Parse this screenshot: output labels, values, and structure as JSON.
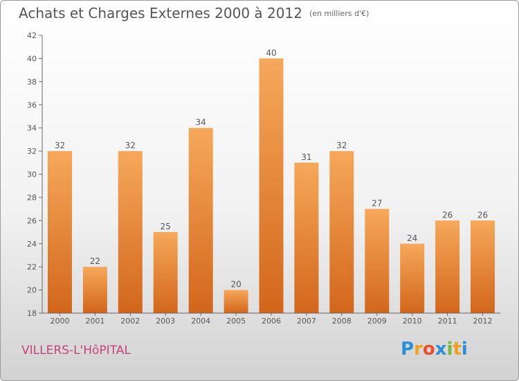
{
  "header": {
    "title": "Achats et Charges Externes 2000 à 2012",
    "unit": "(en milliers d'€)"
  },
  "footer": {
    "town": "VILLERS-L'HôPITAL",
    "logo": {
      "letters": [
        "P",
        "r",
        "o",
        "x",
        "i",
        "t",
        "i"
      ],
      "colors": [
        "#2b8fd6",
        "#f0a020",
        "#e84f2a",
        "#2b8fd6",
        "#7ab83a",
        "#f0a020",
        "#2b8fd6"
      ]
    }
  },
  "chart_data": {
    "type": "bar",
    "categories": [
      "2000",
      "2001",
      "2002",
      "2003",
      "2004",
      "2005",
      "2006",
      "2007",
      "2008",
      "2009",
      "2010",
      "2011",
      "2012"
    ],
    "values": [
      32,
      22,
      32,
      25,
      34,
      20,
      40,
      31,
      32,
      27,
      24,
      26,
      26
    ],
    "data_labels": [
      "32",
      "22",
      "32",
      "25",
      "34",
      "20",
      "40",
      "31",
      "32",
      "27",
      "24",
      "26",
      "26"
    ],
    "ylim": [
      18,
      42
    ],
    "yticks": [
      18,
      20,
      22,
      24,
      26,
      28,
      30,
      32,
      34,
      36,
      38,
      40,
      42
    ],
    "grid": false,
    "colors": {
      "bar_light": "#f6a85a",
      "bar_dark": "#d2661b",
      "axis": "#666666",
      "text": "#555555"
    }
  }
}
